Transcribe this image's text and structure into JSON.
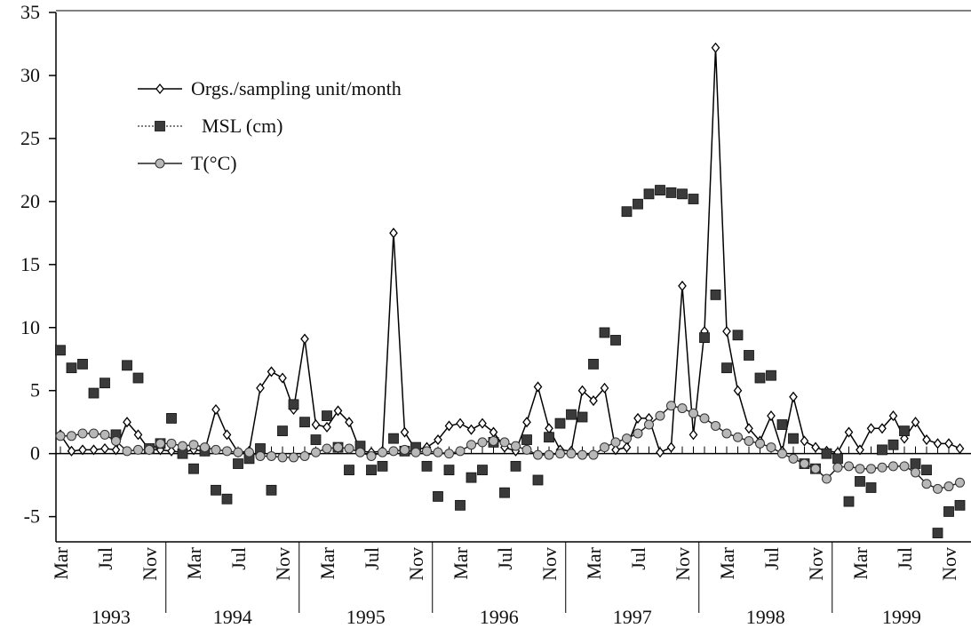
{
  "chart_data": {
    "type": "line",
    "categories": [
      "Mar",
      null,
      null,
      null,
      "Jul",
      null,
      null,
      null,
      "Nov",
      null,
      null,
      null,
      "Mar",
      null,
      null,
      null,
      "Jul",
      null,
      null,
      null,
      "Nov",
      null,
      null,
      null,
      "Mar",
      null,
      null,
      null,
      "Jul",
      null,
      null,
      null,
      "Nov",
      null,
      null,
      null,
      "Mar",
      null,
      null,
      null,
      "Jul",
      null,
      null,
      null,
      "Nov",
      null,
      null,
      null,
      "Mar",
      null,
      null,
      null,
      "Jul",
      null,
      null,
      null,
      "Nov",
      null,
      null,
      null,
      "Mar",
      null,
      null,
      null,
      "Jul",
      null,
      null,
      null,
      "Nov",
      null,
      null,
      null,
      "Mar",
      null,
      null,
      null,
      "Jul",
      null,
      null,
      null,
      "Nov",
      null
    ],
    "years": [
      "1993",
      "1994",
      "1995",
      "1996",
      "1997",
      "1998",
      "1999"
    ],
    "series": [
      {
        "name": "Orgs./sampling unit/month",
        "color": "#000000",
        "marker": "diamond",
        "line": "solid",
        "values": [
          1.5,
          0.2,
          0.3,
          0.3,
          0.4,
          0.3,
          2.5,
          1.5,
          0.3,
          0.3,
          0.2,
          0.1,
          0.3,
          0.2,
          3.5,
          1.5,
          0.1,
          0.2,
          5.2,
          6.5,
          6,
          3.5,
          9.1,
          2.3,
          2.1,
          3.4,
          2.5,
          0.2,
          0.1,
          0.2,
          17.5,
          1.7,
          0.3,
          0.5,
          1.1,
          2.2,
          2.4,
          1.9,
          2.4,
          1.7,
          0.5,
          0.2,
          2.5,
          5.3,
          2,
          0.3,
          0.2,
          5,
          4.2,
          5.2,
          0.3,
          0.5,
          2.8,
          2.8,
          0.1,
          0.5,
          13.3,
          1.5,
          9.7,
          32.2,
          9.7,
          5,
          2,
          1,
          3,
          0.2,
          4.5,
          1,
          0.5,
          0.2,
          0.1,
          1.7,
          0.3,
          2,
          2,
          3,
          1.2,
          2.5,
          1.1,
          0.8,
          0.8,
          0.4
        ]
      },
      {
        "name": "MSL  (cm)",
        "color": "#3a3a3a",
        "marker": "square",
        "line": "none",
        "values": [
          8.2,
          6.8,
          7.1,
          4.8,
          5.6,
          1.5,
          7,
          6,
          0.4,
          0.8,
          2.8,
          0,
          -1.2,
          0.2,
          -2.9,
          -3.6,
          -0.8,
          -0.4,
          0.4,
          -2.9,
          1.8,
          3.9,
          2.5,
          1.1,
          3,
          0.5,
          -1.3,
          0.6,
          -1.3,
          -1,
          1.2,
          0.2,
          0.5,
          -1,
          -3.4,
          -1.3,
          -4.1,
          -1.9,
          -1.3,
          0.9,
          -3.1,
          -1,
          1.1,
          -2.1,
          1.3,
          2.4,
          3.1,
          2.9,
          7.1,
          9.6,
          9,
          19.2,
          19.8,
          20.6,
          20.9,
          20.7,
          20.6,
          20.2,
          9.2,
          12.6,
          6.8,
          9.4,
          7.8,
          6,
          6.2,
          2.3,
          1.2,
          -0.8,
          -1.2,
          0,
          -0.4,
          -3.8,
          -2.2,
          -2.7,
          0.3,
          0.7,
          1.8,
          -0.8,
          -1.3,
          -6.3,
          -4.6,
          -4.1
        ]
      },
      {
        "name": "T(°C)",
        "color": "#b8b8b8",
        "marker": "circle",
        "line": "solid",
        "values": [
          1.4,
          1.4,
          1.6,
          1.6,
          1.5,
          1,
          0.2,
          0.3,
          0.3,
          0.8,
          0.8,
          0.6,
          0.7,
          0.5,
          0.3,
          0.2,
          0.1,
          0.1,
          -0.2,
          -0.2,
          -0.3,
          -0.3,
          -0.2,
          0.1,
          0.4,
          0.5,
          0.4,
          0.1,
          -0.2,
          0.1,
          0.2,
          0.3,
          0.1,
          0.2,
          0.1,
          0,
          0.2,
          0.7,
          0.9,
          1,
          0.9,
          0.6,
          0.3,
          -0.1,
          -0.1,
          0,
          0,
          -0.1,
          -0.1,
          0.5,
          0.9,
          1.2,
          1.6,
          2.3,
          3,
          3.8,
          3.6,
          3.2,
          2.8,
          2.2,
          1.6,
          1.3,
          1,
          0.8,
          0.5,
          0,
          -0.4,
          -0.8,
          -1.2,
          -2,
          -1.1,
          -1,
          -1.2,
          -1.2,
          -1.1,
          -1,
          -1,
          -1.5,
          -2.4,
          -2.8,
          -2.6,
          -2.3
        ]
      }
    ],
    "ylim": [
      -7,
      35
    ],
    "yticks": [
      -5,
      0,
      5,
      10,
      15,
      20,
      25,
      30,
      35
    ],
    "legend": "upper left"
  }
}
